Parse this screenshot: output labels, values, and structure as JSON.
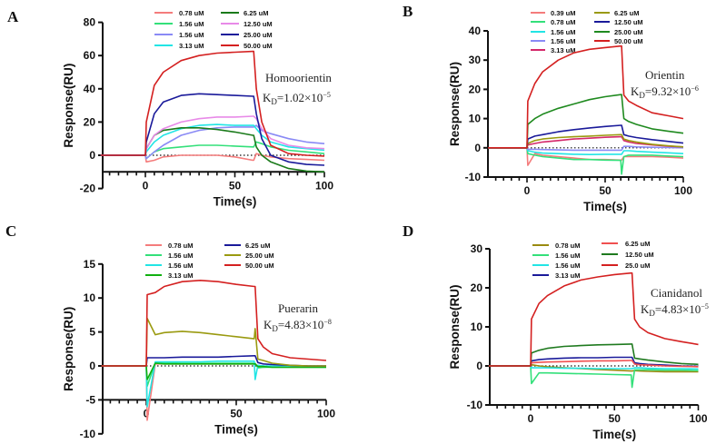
{
  "time_points": [
    -25,
    0,
    0.5,
    5,
    10,
    20,
    30,
    40,
    50,
    60,
    60.5,
    62,
    65,
    70,
    80,
    90,
    100
  ],
  "chart_data": [
    {
      "type": "line",
      "panel": "A",
      "xlabel": "Time(s)",
      "ylabel": "Response(RU)",
      "xlim": [
        -25,
        100
      ],
      "ylim": [
        -20,
        80
      ],
      "xaxis_at": -10,
      "xticks": [
        0,
        50,
        100
      ],
      "yticks": [
        -20,
        0,
        20,
        40,
        60,
        80
      ],
      "compound": "Homoorientin",
      "kd_label": "K",
      "kd_sub": "D",
      "kd_value": "=1.02×10",
      "kd_exp": "−5",
      "legend_split": 4,
      "series": [
        {
          "name": "0.78 uM",
          "color": "#f47c7c",
          "values": [
            0,
            0,
            -4,
            -3,
            -1,
            0,
            0,
            0,
            -1,
            -3,
            -3,
            1,
            0,
            -1,
            -2,
            -2.5,
            -3
          ]
        },
        {
          "name": "1.56 uM",
          "color": "#33e07a",
          "values": [
            0,
            0,
            -2,
            2,
            4,
            5,
            6,
            6,
            5.5,
            5,
            5,
            8,
            7,
            5,
            3,
            2,
            1
          ]
        },
        {
          "name": "1.56 uM",
          "color": "#8a8af5",
          "values": [
            0,
            0,
            -2,
            2,
            6,
            12,
            15,
            16.5,
            17,
            17,
            17,
            18,
            15,
            13,
            10,
            8,
            7
          ]
        },
        {
          "name": "3.13 uM",
          "color": "#22e5e5",
          "values": [
            0,
            0,
            2,
            8,
            12,
            16,
            18,
            18.5,
            18,
            18,
            18,
            16,
            12,
            8,
            5,
            4,
            3
          ]
        },
        {
          "name": "6.25 uM",
          "color": "#1a7a1a",
          "values": [
            0,
            0,
            4,
            12,
            15,
            16.5,
            16.5,
            15.5,
            14,
            12,
            12,
            5,
            0,
            -4,
            -8,
            -9.5,
            -10
          ]
        },
        {
          "name": "12.50 uM",
          "color": "#e88ae8",
          "values": [
            0,
            0,
            4,
            12,
            16,
            20,
            22,
            23,
            23,
            23.5,
            23.5,
            22,
            16,
            10,
            6,
            4.5,
            4
          ]
        },
        {
          "name": "25.00 uM",
          "color": "#1a1a9a",
          "values": [
            0,
            0,
            8,
            25,
            32,
            36,
            37,
            36.5,
            36,
            35.5,
            35.5,
            25,
            10,
            0,
            -4,
            -5.5,
            -6
          ]
        },
        {
          "name": "50.00 uM",
          "color": "#d42020",
          "values": [
            0,
            0,
            20,
            42,
            50,
            57,
            60,
            61.5,
            62,
            62.5,
            62.5,
            40,
            20,
            6,
            1,
            0,
            -0.5
          ]
        }
      ]
    },
    {
      "type": "line",
      "panel": "B",
      "xlabel": "Time(s)",
      "ylabel": "Response(RU)",
      "xlim": [
        -25,
        100
      ],
      "ylim": [
        -10,
        40
      ],
      "xaxis_at": -10,
      "xticks": [
        0,
        50,
        100
      ],
      "yticks": [
        -10,
        0,
        10,
        20,
        30,
        40
      ],
      "compound": "Orientin",
      "kd_label": "K",
      "kd_sub": "D",
      "kd_value": "=9.32×10",
      "kd_exp": "−6",
      "legend_split": 5,
      "series": [
        {
          "name": "0.39 uM",
          "color": "#f47c7c",
          "values": [
            0,
            0,
            -6,
            -2,
            -2.5,
            -3,
            -3.5,
            -4,
            -4,
            -4.2,
            -4.2,
            -3,
            -3,
            -3,
            -3,
            -3.2,
            -3.5
          ]
        },
        {
          "name": "0.78 uM",
          "color": "#33e07a",
          "values": [
            0,
            0,
            -2,
            -2.5,
            -3,
            -3.5,
            -4,
            -4,
            -4.2,
            -4.3,
            -9,
            -3,
            -2.5,
            -2.5,
            -2.5,
            -2.8,
            -3
          ]
        },
        {
          "name": "1.56 uM",
          "color": "#22e5e5",
          "values": [
            0,
            0,
            -1,
            -1.5,
            -1.8,
            -2,
            -2.2,
            -2.3,
            -2.2,
            -2.2,
            -2.2,
            -1,
            -1,
            -1.2,
            -1.5,
            -1.7,
            -2
          ]
        },
        {
          "name": "1.56 uM",
          "color": "#8a8af5",
          "values": [
            0,
            0,
            -0.5,
            -0.5,
            -0.6,
            -0.7,
            -0.8,
            -0.8,
            -0.8,
            -0.8,
            -0.8,
            0.5,
            0.5,
            0.3,
            0.2,
            0.1,
            0
          ]
        },
        {
          "name": "3.13 uM",
          "color": "#d4286a",
          "values": [
            0,
            0,
            1,
            1.5,
            2,
            2.5,
            3,
            3.3,
            3.6,
            3.8,
            3.8,
            2.5,
            2,
            1.5,
            1,
            0.6,
            0.3
          ]
        },
        {
          "name": "6.25 uM",
          "color": "#9a9a10",
          "values": [
            0,
            0,
            1.5,
            2.5,
            3,
            3.5,
            3.8,
            4,
            4.3,
            4.5,
            4.5,
            3,
            2.5,
            2,
            1.2,
            0.7,
            0.3
          ]
        },
        {
          "name": "12.50 uM",
          "color": "#1a1a9a",
          "values": [
            0,
            0,
            3,
            4,
            4.5,
            5.5,
            6.2,
            6.8,
            7.3,
            7.7,
            7.7,
            4.5,
            4,
            3.5,
            2.8,
            2.2,
            1.6
          ]
        },
        {
          "name": "25.00 uM",
          "color": "#1f8a1f",
          "values": [
            0,
            0,
            8,
            10,
            11.5,
            13.5,
            15,
            16.5,
            17.5,
            18.2,
            18.2,
            10,
            9,
            8,
            6.5,
            5.7,
            5
          ]
        },
        {
          "name": "50.00 uM",
          "color": "#d42020",
          "values": [
            0,
            0,
            16,
            22,
            26,
            30,
            32.5,
            33.7,
            34.3,
            34.8,
            34.8,
            18,
            16,
            14.5,
            12,
            11,
            10
          ]
        }
      ]
    },
    {
      "type": "line",
      "panel": "C",
      "xlabel": "Time(s)",
      "ylabel": "Response(RU)",
      "xlim": [
        -25,
        100
      ],
      "ylim": [
        -10,
        15
      ],
      "xaxis_at": -5,
      "xticks": [
        0,
        50,
        100
      ],
      "yticks": [
        -10,
        -5,
        0,
        5,
        10,
        15
      ],
      "compound": "Puerarin",
      "kd_label": "K",
      "kd_sub": "D",
      "kd_value": "=4.83×10",
      "kd_exp": "−8",
      "legend_split": 4,
      "series": [
        {
          "name": "0.78 uM",
          "color": "#f47c7c",
          "values": [
            0,
            0,
            -8,
            0.3,
            0.3,
            0.3,
            0.3,
            0.3,
            0.3,
            0.3,
            0.3,
            0,
            -0.2,
            -0.1,
            -0.1,
            -0.1,
            -0.1
          ]
        },
        {
          "name": "1.56 uM",
          "color": "#33e07a",
          "values": [
            0,
            0,
            -3,
            0.5,
            0.5,
            0.4,
            0.4,
            0.4,
            0.4,
            0.4,
            0.4,
            -0.3,
            -0.2,
            -0.2,
            -0.2,
            -0.2,
            -0.2
          ]
        },
        {
          "name": "1.56 uM",
          "color": "#22e5e5",
          "values": [
            0,
            0,
            -6,
            0.6,
            0.6,
            0.6,
            0.6,
            0.7,
            0.7,
            0.7,
            -2,
            0.1,
            0,
            0,
            0,
            0,
            0
          ]
        },
        {
          "name": "3.13 uM",
          "color": "#10b010",
          "values": [
            0,
            0,
            -2,
            0.4,
            0.3,
            0.3,
            0.3,
            0.3,
            0.3,
            0.3,
            0.3,
            -0.1,
            -0.1,
            -0.2,
            -0.2,
            -0.2,
            -0.2
          ]
        },
        {
          "name": "6.25 uM",
          "color": "#1a1a9a",
          "values": [
            0,
            0,
            1.2,
            1.2,
            1.2,
            1.3,
            1.3,
            1.3,
            1.4,
            1.5,
            1.5,
            0.5,
            0.3,
            0.2,
            0.1,
            0,
            0
          ]
        },
        {
          "name": "25.00 uM",
          "color": "#9a9a10",
          "values": [
            0,
            0,
            7,
            4.6,
            4.9,
            5.1,
            4.9,
            4.6,
            4.3,
            4,
            5.5,
            1,
            0.8,
            0.4,
            0.1,
            0,
            0
          ]
        },
        {
          "name": "50.00 uM",
          "color": "#d42020",
          "values": [
            0,
            0,
            10.5,
            10.8,
            11.7,
            12.4,
            12.6,
            12.4,
            12,
            11.7,
            11.7,
            4,
            2.8,
            1.8,
            1.2,
            1,
            0.8
          ]
        }
      ]
    },
    {
      "type": "line",
      "panel": "D",
      "xlabel": "Time(s)",
      "ylabel": "Response(RU)",
      "xlim": [
        -25,
        100
      ],
      "ylim": [
        -10,
        30
      ],
      "xaxis_at": -10,
      "xticks": [
        0,
        50,
        100
      ],
      "yticks": [
        -10,
        0,
        10,
        20,
        30
      ],
      "compound": "Cianidanol",
      "kd_label": "K",
      "kd_sub": "D",
      "kd_value": "=4.83×10",
      "kd_exp": "−5",
      "legend_split": 4,
      "series": [
        {
          "name": "0.78 uM",
          "color": "#9a8a10",
          "values": [
            0,
            0,
            0.3,
            0,
            -0.2,
            -0.5,
            -0.7,
            -0.9,
            -1.1,
            -1.3,
            -1.3,
            -1.2,
            -1.3,
            -1.4,
            -1.5,
            -1.5,
            -1.5
          ]
        },
        {
          "name": "1.56 uM",
          "color": "#33e07a",
          "values": [
            0,
            0,
            -4.5,
            -1.8,
            -1.8,
            -1.9,
            -2,
            -2.1,
            -2.2,
            -2.3,
            -5.5,
            -1,
            -1,
            -1,
            -1.1,
            -1.1,
            -1.2
          ]
        },
        {
          "name": "1.56 uM",
          "color": "#22e5e5",
          "values": [
            0,
            0,
            -0.5,
            -0.5,
            -0.5,
            -0.6,
            -0.6,
            -0.7,
            -0.7,
            -0.7,
            -0.7,
            -0.5,
            -0.5,
            -0.6,
            -0.7,
            -0.7,
            -0.8
          ]
        },
        {
          "name": "3.13 uM",
          "color": "#1a1a9a",
          "values": [
            0,
            0,
            1.3,
            1.6,
            1.8,
            2,
            2.1,
            2.1,
            2.2,
            2.2,
            2.2,
            0.8,
            0.6,
            0.4,
            0.2,
            0,
            -0.1
          ]
        },
        {
          "name": "6.25 uM",
          "color": "#f05050",
          "values": [
            0,
            0,
            0.8,
            0.9,
            1,
            1.1,
            1.2,
            1.3,
            1.3,
            1.4,
            1.4,
            0.5,
            0.3,
            0.2,
            0,
            -0.1,
            -0.2
          ]
        },
        {
          "name": "12.50 uM",
          "color": "#1f7a1f",
          "values": [
            0,
            0,
            3.3,
            4,
            4.5,
            5,
            5.2,
            5.4,
            5.5,
            5.6,
            5.6,
            2,
            1.8,
            1.5,
            1,
            0.6,
            0.4
          ]
        },
        {
          "name": "25.0 uM",
          "color": "#d42020",
          "values": [
            0,
            0,
            12,
            16,
            18,
            20.5,
            22,
            22.8,
            23.4,
            23.8,
            23.8,
            12,
            10,
            8.5,
            7,
            6.2,
            5.5
          ]
        }
      ]
    }
  ]
}
